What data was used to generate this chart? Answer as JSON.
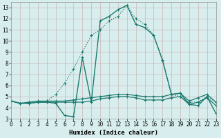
{
  "xlabel": "Humidex (Indice chaleur)",
  "background_color": "#d8eeee",
  "grid_color": "#b8d8d8",
  "line_color": "#1a7a6e",
  "xlim": [
    0,
    23
  ],
  "ylim": [
    3,
    13.5
  ],
  "xticks": [
    0,
    1,
    2,
    3,
    4,
    5,
    6,
    7,
    8,
    9,
    10,
    11,
    12,
    13,
    14,
    15,
    16,
    17,
    18,
    19,
    20,
    21,
    22,
    23
  ],
  "yticks": [
    3,
    4,
    5,
    6,
    7,
    8,
    9,
    10,
    11,
    12,
    13
  ],
  "series": [
    {
      "name": "dotted_main",
      "linestyle": "dotted",
      "linewidth": 0.9,
      "x": [
        0,
        1,
        2,
        3,
        4,
        5,
        6,
        7,
        8,
        9,
        10,
        11,
        12,
        13,
        14,
        15,
        16,
        17,
        18,
        19,
        20,
        21,
        22,
        23
      ],
      "y": [
        4.6,
        4.4,
        4.5,
        4.5,
        4.6,
        5.2,
        6.2,
        7.5,
        9.0,
        10.5,
        11.0,
        11.8,
        12.2,
        13.2,
        12.0,
        11.5,
        10.5,
        8.2,
        5.2,
        5.0,
        4.5,
        4.5,
        5.0,
        4.5
      ]
    },
    {
      "name": "solid_upper",
      "linestyle": "solid",
      "linewidth": 0.9,
      "x": [
        0,
        1,
        2,
        3,
        4,
        5,
        6,
        7,
        8,
        9,
        10,
        11,
        12,
        13,
        14,
        15,
        16,
        17,
        18,
        19,
        20,
        21,
        22,
        23
      ],
      "y": [
        4.6,
        4.4,
        4.5,
        4.6,
        4.6,
        4.6,
        4.6,
        4.7,
        4.8,
        4.9,
        5.0,
        5.1,
        5.2,
        5.2,
        5.1,
        5.0,
        5.0,
        5.0,
        5.2,
        5.3,
        4.6,
        4.9,
        5.2,
        4.5
      ]
    },
    {
      "name": "solid_mid",
      "linestyle": "solid",
      "linewidth": 0.9,
      "x": [
        0,
        1,
        2,
        3,
        4,
        5,
        6,
        7,
        8,
        9,
        10,
        11,
        12,
        13,
        14,
        15,
        16,
        17,
        18,
        19,
        20,
        21,
        22,
        23
      ],
      "y": [
        4.6,
        4.4,
        4.4,
        4.5,
        4.5,
        4.5,
        4.5,
        4.5,
        4.5,
        4.6,
        4.8,
        4.9,
        5.0,
        5.0,
        4.9,
        4.7,
        4.7,
        4.7,
        4.9,
        5.0,
        4.3,
        4.5,
        4.9,
        4.2
      ]
    },
    {
      "name": "main_spike",
      "linestyle": "solid",
      "linewidth": 1.0,
      "x": [
        0,
        1,
        2,
        3,
        4,
        5,
        6,
        7,
        8,
        9,
        10,
        11,
        12,
        13,
        14,
        15,
        16,
        17,
        18,
        19,
        20,
        21,
        22,
        23
      ],
      "y": [
        4.6,
        4.4,
        4.4,
        4.5,
        4.5,
        4.4,
        3.3,
        3.2,
        8.5,
        4.5,
        11.8,
        12.2,
        12.8,
        13.2,
        11.5,
        11.2,
        10.5,
        8.3,
        5.2,
        5.3,
        4.3,
        4.2,
        5.0,
        3.5
      ]
    }
  ]
}
